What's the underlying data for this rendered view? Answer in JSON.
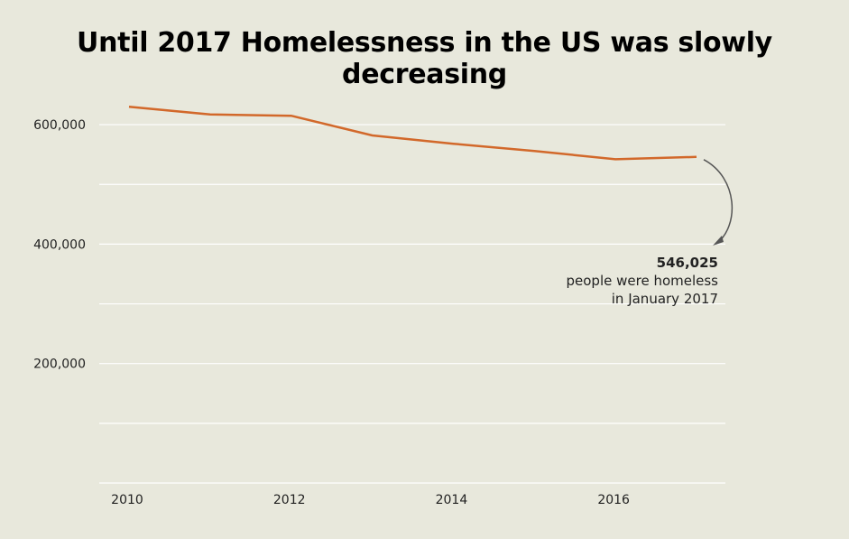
{
  "chart_data": {
    "type": "line",
    "title": "Until 2017 Homelessness in the US was slowly decreasing",
    "xlabel": "",
    "ylabel": "",
    "x": [
      2010,
      2011,
      2012,
      2013,
      2014,
      2015,
      2016,
      2017
    ],
    "series": [
      {
        "values": [
          630000,
          617000,
          615000,
          582000,
          568000,
          556000,
          542000,
          546025
        ]
      }
    ],
    "xlim": [
      2010,
      2017
    ],
    "ylim": [
      0,
      650000
    ],
    "x_ticks": [
      2010,
      2012,
      2014,
      2016
    ],
    "x_tick_labels": [
      "2010",
      "2012",
      "2014",
      "2016"
    ],
    "y_ticks": [
      200000,
      400000,
      600000
    ],
    "y_tick_labels": [
      "200,000",
      "400,000",
      "600,000"
    ],
    "grid": true,
    "annotation": {
      "value": "546,025",
      "line1": "people were homeless",
      "line2": "in January 2017"
    },
    "colors": {
      "line": "#d2682a",
      "grid": "#ffffff",
      "background": "#e8e8dc",
      "arrow": "#555555"
    }
  }
}
